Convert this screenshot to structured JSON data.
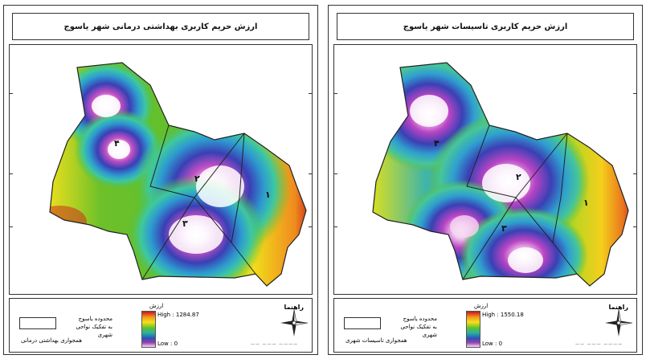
{
  "panels": [
    {
      "title": "ارزش حریم کاربری بهداشتی درمانی شهر یاسوج",
      "legend": {
        "title": "راهنما",
        "boundary_label_1": "محدوده یاسوج",
        "boundary_label_2": "به تفکیک نواحی شهری",
        "layer_label": "همجواری بهداشتی درمانی",
        "ramp_title": "ارزش",
        "high_label": "High : 1284.87",
        "low_label": "Low : 0"
      },
      "zones": [
        "۱",
        "۲",
        "۳",
        "۴"
      ],
      "scale_text": "—— ——— ————"
    },
    {
      "title": "ارزش حریم کاربری تاسیسات شهر یاسوج",
      "legend": {
        "title": "راهنما",
        "boundary_label_1": "محدوده یاسوج",
        "boundary_label_2": "به تفکیک نواحی شهری",
        "layer_label": "همجواری تاسیسات شهری",
        "ramp_title": "ارزش",
        "high_label": "High : 1550.18",
        "low_label": "Low : 0"
      },
      "zones": [
        "۱",
        "۲",
        "۳",
        "۴"
      ],
      "scale_text": "—— ——— ————"
    }
  ],
  "ramp_colors": [
    "#c8161d",
    "#f29b1e",
    "#f5e11b",
    "#63c02a",
    "#27b3a0",
    "#2e4fb6",
    "#9b3fb0",
    "#f7dcf4"
  ]
}
